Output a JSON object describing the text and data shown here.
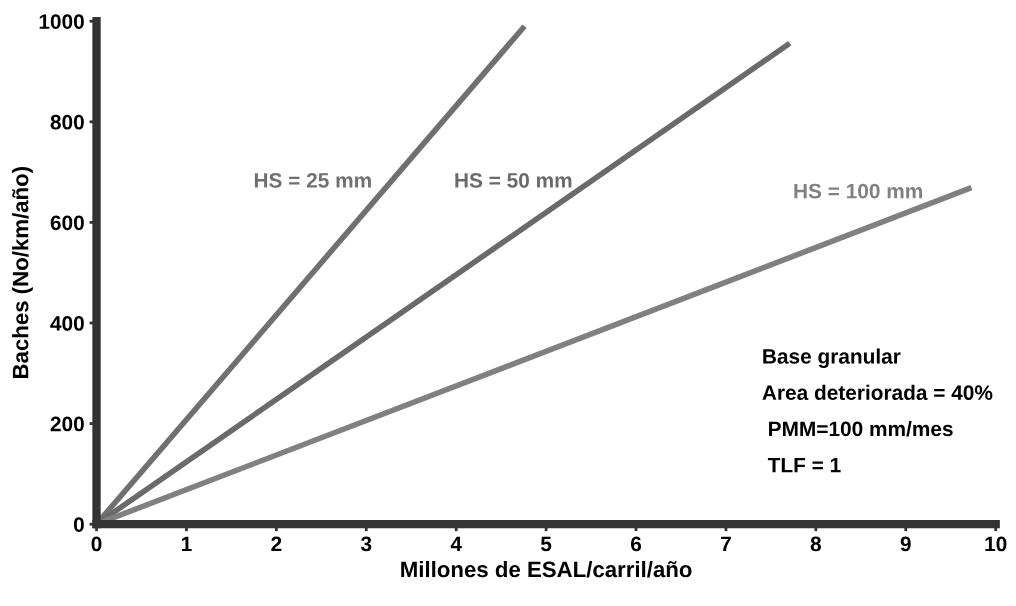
{
  "chart_data": {
    "type": "line",
    "xlabel": "Millones de ESAL/carril/año",
    "ylabel": "Baches (No/km/año)",
    "xlim": [
      0,
      10
    ],
    "ylim": [
      0,
      1000
    ],
    "xticks": [
      0,
      1,
      2,
      3,
      4,
      5,
      6,
      7,
      8,
      9,
      10
    ],
    "yticks": [
      0,
      200,
      400,
      600,
      800,
      1000
    ],
    "grid": false,
    "legend": false,
    "marker": "none",
    "line_style": "solid",
    "series": [
      {
        "name": "HS = 25 mm",
        "color": "#707070",
        "x": [
          0,
          4.76
        ],
        "values": [
          0,
          990
        ]
      },
      {
        "name": "HS = 50 mm",
        "color": "#6a6a6a",
        "x": [
          0,
          7.71
        ],
        "values": [
          0,
          956
        ]
      },
      {
        "name": "HS = 100 mm",
        "color": "#808080",
        "x": [
          0,
          9.73
        ],
        "values": [
          0,
          669
        ]
      }
    ],
    "annotations": [
      "Base granular",
      "Area deteriorada = 40%",
      " PMM=100 mm/mes",
      " TLF = 1"
    ]
  }
}
